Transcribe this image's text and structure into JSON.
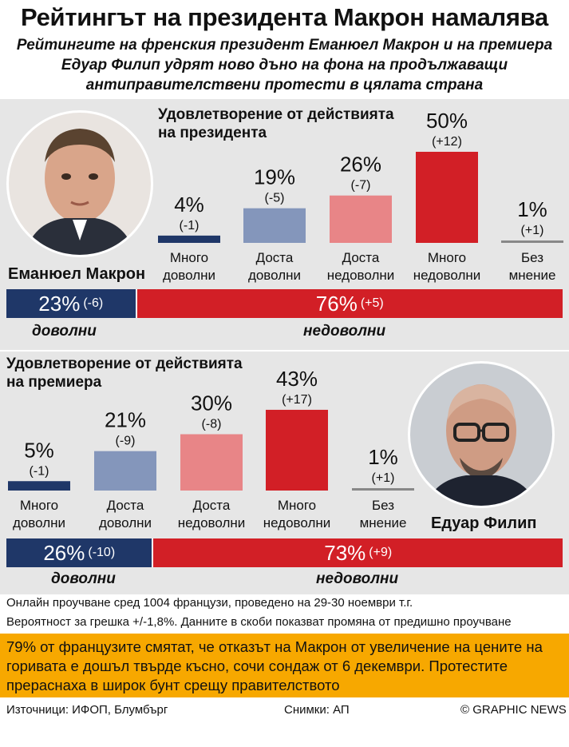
{
  "title": "Рейтингът на президента Макрон намалява",
  "subtitle": [
    "Рейтингите на френския президент Еманюел Макрон и на премиера",
    "Едуар Филип удрят ново дъно на фона на продължаващи",
    "антиправителствени протести в цялата страна"
  ],
  "colors": {
    "very_satisfied": "#1f3768",
    "fairly_satisfied": "#8496bb",
    "fairly_dissatisfied": "#e88587",
    "very_dissatisfied": "#d21f26",
    "no_opinion": "#888888",
    "panel_bg": "#e6e6e6",
    "highlight_bg": "#f7a800"
  },
  "president": {
    "name": "Еманюел Макрон",
    "chart_title_1": "Удовлетворение от действията",
    "chart_title_2": "на президента",
    "satisfied_label": "доволни",
    "dissatisfied_label": "недоволни",
    "satisfied_value": "23%",
    "satisfied_change": "(-6)",
    "dissatisfied_value": "76%",
    "dissatisfied_change": "(+5)"
  },
  "premier": {
    "name": "Едуар Филип",
    "chart_title_1": "Удовлетворение от действията",
    "chart_title_2": "на премиера",
    "satisfied_label": "доволни",
    "dissatisfied_label": "недоволни",
    "satisfied_value": "26%",
    "satisfied_change": "(-10)",
    "dissatisfied_value": "73%",
    "dissatisfied_change": "(+9)"
  },
  "chart_data": [
    {
      "type": "bar",
      "title": "Удовлетворение от действията на президента",
      "categories": [
        "Много доволни",
        "Доста доволни",
        "Доста недоволни",
        "Много недоволни",
        "Без мнение"
      ],
      "category_lines": [
        [
          "Много",
          "доволни"
        ],
        [
          "Доста",
          "доволни"
        ],
        [
          "Доста",
          "недоволни"
        ],
        [
          "Много",
          "недоволни"
        ],
        [
          "Без",
          "мнение"
        ]
      ],
      "values": [
        4,
        19,
        26,
        50,
        1
      ],
      "labels": [
        "4%",
        "19%",
        "26%",
        "50%",
        "1%"
      ],
      "changes": [
        "(-1)",
        "(-5)",
        "(-7)",
        "(+12)",
        "(+1)"
      ],
      "summary": {
        "satisfied": 23,
        "satisfied_change": -6,
        "dissatisfied": 76,
        "dissatisfied_change": 5
      }
    },
    {
      "type": "bar",
      "title": "Удовлетворение от действията на премиера",
      "categories": [
        "Много доволни",
        "Доста доволни",
        "Доста недоволни",
        "Много недоволни",
        "Без мнение"
      ],
      "category_lines": [
        [
          "Много",
          "доволни"
        ],
        [
          "Доста",
          "доволни"
        ],
        [
          "Доста",
          "недоволни"
        ],
        [
          "Много",
          "недоволни"
        ],
        [
          "Без",
          "мнение"
        ]
      ],
      "values": [
        5,
        21,
        30,
        43,
        1
      ],
      "labels": [
        "5%",
        "21%",
        "30%",
        "43%",
        "1%"
      ],
      "changes": [
        "(-1)",
        "(-9)",
        "(-8)",
        "(+17)",
        "(+1)"
      ],
      "summary": {
        "satisfied": 26,
        "satisfied_change": -10,
        "dissatisfied": 73,
        "dissatisfied_change": 9
      }
    }
  ],
  "notes": [
    "Онлайн проучване сред 1004 французи, проведено на 29-30 ноември т.г.",
    "Вероятност за грешка +/-1,8%. Данните в скоби показват промяна от предишно проучване"
  ],
  "highlight": "79% от французите смятат, че отказът на Макрон от увеличение на цените на горивата е дошъл твърде късно, сочи сондаж от 6 декември. Протестите прераснаха в широк бунт срещу правителството",
  "footer": {
    "sources": "Източници: ИФОП, Блумбърг",
    "photos": "Снимки: АП",
    "credit": "© GRAPHIC NEWS"
  }
}
